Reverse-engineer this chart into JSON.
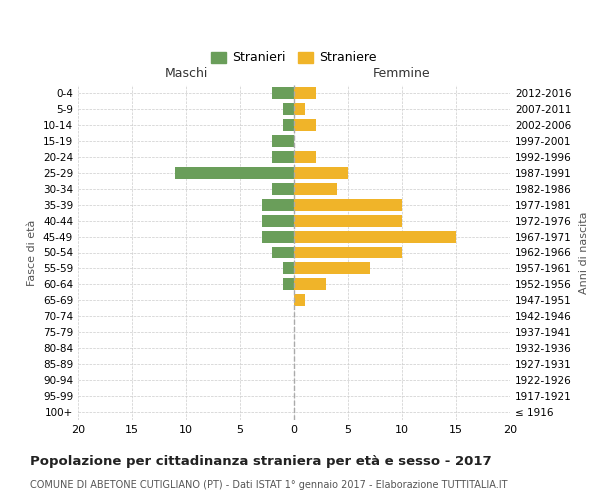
{
  "age_groups": [
    "100+",
    "95-99",
    "90-94",
    "85-89",
    "80-84",
    "75-79",
    "70-74",
    "65-69",
    "60-64",
    "55-59",
    "50-54",
    "45-49",
    "40-44",
    "35-39",
    "30-34",
    "25-29",
    "20-24",
    "15-19",
    "10-14",
    "5-9",
    "0-4"
  ],
  "birth_years": [
    "≤ 1916",
    "1917-1921",
    "1922-1926",
    "1927-1931",
    "1932-1936",
    "1937-1941",
    "1942-1946",
    "1947-1951",
    "1952-1956",
    "1957-1961",
    "1962-1966",
    "1967-1971",
    "1972-1976",
    "1977-1981",
    "1982-1986",
    "1987-1991",
    "1992-1996",
    "1997-2001",
    "2002-2006",
    "2007-2011",
    "2012-2016"
  ],
  "stranieri": [
    0,
    0,
    0,
    0,
    0,
    0,
    0,
    0,
    1,
    1,
    2,
    3,
    3,
    3,
    2,
    11,
    2,
    2,
    1,
    1,
    2
  ],
  "straniere": [
    0,
    0,
    0,
    0,
    0,
    0,
    0,
    1,
    3,
    7,
    10,
    15,
    10,
    10,
    4,
    5,
    2,
    0,
    2,
    1,
    2
  ],
  "male_color": "#6a9e5a",
  "female_color": "#f0b429",
  "xlim": 20,
  "background_color": "#ffffff",
  "grid_color": "#cccccc",
  "center_line_color": "#aaaaaa",
  "title": "Popolazione per cittadinanza straniera per età e sesso - 2017",
  "subtitle": "COMUNE DI ABETONE CUTIGLIANO (PT) - Dati ISTAT 1° gennaio 2017 - Elaborazione TUTTITALIA.IT",
  "xlabel_left": "Maschi",
  "xlabel_right": "Femmine",
  "ylabel_left": "Fasce di età",
  "ylabel_right": "Anni di nascita",
  "legend_stranieri": "Stranieri",
  "legend_straniere": "Straniere"
}
